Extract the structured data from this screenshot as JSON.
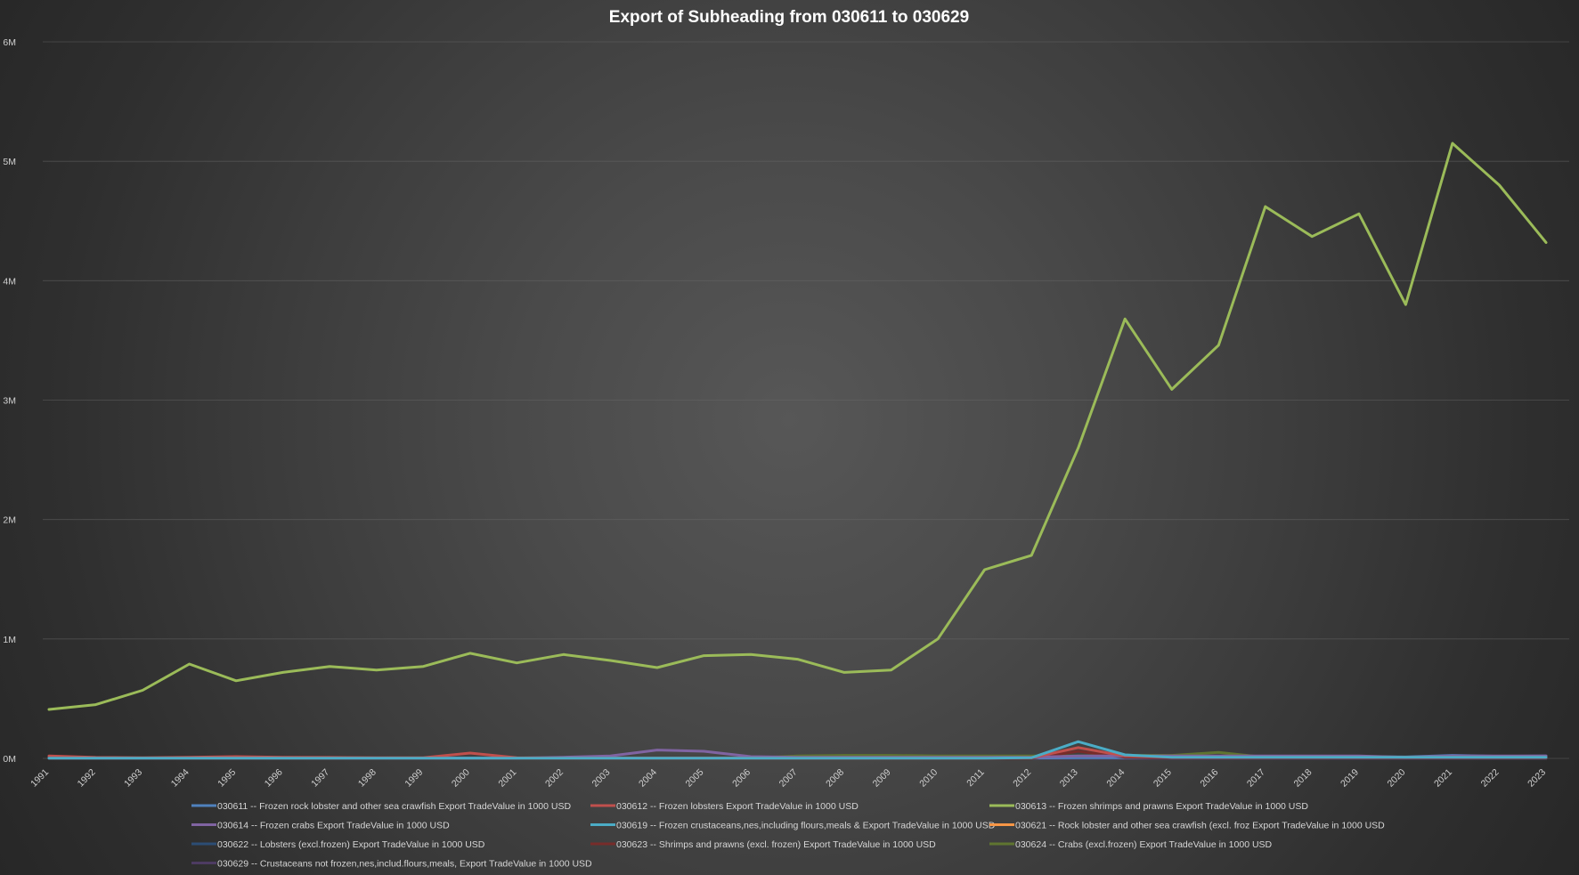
{
  "chart_data": {
    "type": "line",
    "title": "Export of Subheading from 030611 to 030629",
    "xlabel": "",
    "ylabel": "",
    "ylim": [
      0,
      6000000
    ],
    "yticks": [
      0,
      1000000,
      2000000,
      3000000,
      4000000,
      5000000,
      6000000
    ],
    "ytick_labels": [
      "0M",
      "1M",
      "2M",
      "3M",
      "4M",
      "5M",
      "6M"
    ],
    "grid": true,
    "legend_position": "bottom",
    "x": [
      "1991",
      "1992",
      "1993",
      "1994",
      "1995",
      "1996",
      "1997",
      "1998",
      "1999",
      "2000",
      "2001",
      "2002",
      "2003",
      "2004",
      "2005",
      "2006",
      "2007",
      "2008",
      "2009",
      "2010",
      "2011",
      "2012",
      "2013",
      "2014",
      "2015",
      "2016",
      "2017",
      "2018",
      "2019",
      "2020",
      "2021",
      "2022",
      "2023"
    ],
    "series": [
      {
        "name": "030611 -- Frozen rock lobster and other sea crawfish Export TradeValue in 1000 USD",
        "color": "#4f81bd",
        "values": [
          5000,
          3000,
          3000,
          4000,
          4000,
          3000,
          3000,
          2000,
          2000,
          3000,
          2000,
          2000,
          2000,
          2000,
          2000,
          2000,
          2000,
          2000,
          2000,
          2000,
          2000,
          3000,
          5000,
          5000,
          8000,
          8000,
          10000,
          15000,
          15000,
          12000,
          25000,
          18000,
          20000
        ]
      },
      {
        "name": "030612 -- Frozen lobsters Export TradeValue in 1000 USD",
        "color": "#c0504d",
        "values": [
          20000,
          8000,
          5000,
          10000,
          15000,
          10000,
          8000,
          5000,
          5000,
          45000,
          5000,
          3000,
          3000,
          3000,
          3000,
          3000,
          3000,
          3000,
          3000,
          3000,
          3000,
          5000,
          90000,
          20000,
          10000,
          10000,
          10000,
          10000,
          10000,
          10000,
          10000,
          10000,
          10000
        ]
      },
      {
        "name": "030613 -- Frozen shrimps and prawns Export TradeValue in 1000 USD",
        "color": "#9bbb59",
        "values": [
          410000,
          450000,
          570000,
          790000,
          650000,
          720000,
          770000,
          740000,
          770000,
          880000,
          800000,
          870000,
          820000,
          760000,
          860000,
          870000,
          830000,
          720000,
          740000,
          1000000,
          1580000,
          1700000,
          2600000,
          3680000,
          3090000,
          3460000,
          4620000,
          4370000,
          4560000,
          3800000,
          5150000,
          4800000,
          4320000
        ]
      },
      {
        "name": "030614 -- Frozen crabs Export TradeValue in 1000 USD",
        "color": "#8064a2",
        "values": [
          3000,
          3000,
          3000,
          3000,
          3000,
          3000,
          3000,
          3000,
          3000,
          3000,
          3000,
          10000,
          20000,
          70000,
          60000,
          15000,
          10000,
          10000,
          10000,
          10000,
          10000,
          10000,
          20000,
          20000,
          20000,
          20000,
          20000,
          20000,
          20000,
          10000,
          20000,
          20000,
          20000
        ]
      },
      {
        "name": "030619 -- Frozen crustaceans,nes,including flours,meals & Export TradeValue in 1000 USD",
        "color": "#4bacc6",
        "values": [
          2000,
          2000,
          2000,
          2000,
          2000,
          2000,
          2000,
          2000,
          2000,
          2000,
          2000,
          2000,
          2000,
          2000,
          2000,
          2000,
          2000,
          2000,
          2000,
          2000,
          2000,
          5000,
          140000,
          30000,
          10000,
          10000,
          10000,
          10000,
          10000,
          10000,
          10000,
          10000,
          10000
        ]
      },
      {
        "name": "030621 -- Rock lobster and other sea crawfish (excl. froz Export TradeValue in 1000 USD",
        "color": "#f79646",
        "values": [
          1000,
          1000,
          1000,
          1000,
          1000,
          1000,
          1000,
          1000,
          1000,
          1000,
          1000,
          1000,
          1000,
          1000,
          1000,
          1000,
          1000,
          1000,
          1000,
          1000,
          1000,
          1000,
          1000,
          1000,
          1000,
          1000,
          1000,
          1000,
          1000,
          1000,
          1000,
          1000,
          1000
        ]
      },
      {
        "name": "030622 -- Lobsters (excl.frozen) Export TradeValue in 1000 USD",
        "color": "#2c4d75",
        "values": [
          1000,
          1000,
          1000,
          1000,
          1000,
          1000,
          1000,
          1000,
          1000,
          1000,
          1000,
          1000,
          1000,
          1000,
          1000,
          1000,
          1000,
          1000,
          1000,
          1000,
          1000,
          1000,
          1000,
          1000,
          1000,
          1000,
          1000,
          1000,
          1000,
          1000,
          1000,
          1000,
          1000
        ]
      },
      {
        "name": "030623 -- Shrimps and prawns (excl. frozen) Export TradeValue in 1000 USD",
        "color": "#772c2a",
        "values": [
          1000,
          1000,
          1000,
          1000,
          1000,
          1000,
          1000,
          1000,
          1000,
          1000,
          1000,
          1000,
          1000,
          1000,
          1000,
          1000,
          1000,
          1000,
          1000,
          1000,
          1000,
          1000,
          60000,
          10000,
          5000,
          5000,
          5000,
          5000,
          5000,
          5000,
          5000,
          5000,
          5000
        ]
      },
      {
        "name": "030624 -- Crabs (excl.frozen) Export TradeValue in 1000 USD",
        "color": "#5f7530",
        "values": [
          3000,
          3000,
          3000,
          3000,
          3000,
          3000,
          3000,
          3000,
          3000,
          3000,
          3000,
          3000,
          3000,
          3000,
          3000,
          3000,
          20000,
          25000,
          25000,
          20000,
          20000,
          20000,
          20000,
          25000,
          25000,
          50000,
          10000,
          10000,
          10000,
          10000,
          10000,
          10000,
          10000
        ]
      },
      {
        "name": "030629 -- Crustaceans not frozen,nes,includ.flours,meals, Export TradeValue in 1000 USD",
        "color": "#4d3b62",
        "values": [
          1000,
          1000,
          1000,
          1000,
          1000,
          1000,
          1000,
          1000,
          1000,
          1000,
          1000,
          1000,
          1000,
          1000,
          1000,
          1000,
          1000,
          1000,
          1000,
          1000,
          1000,
          1000,
          1000,
          1000,
          1000,
          1000,
          1000,
          1000,
          1000,
          1000,
          1000,
          1000,
          1000
        ]
      }
    ]
  }
}
